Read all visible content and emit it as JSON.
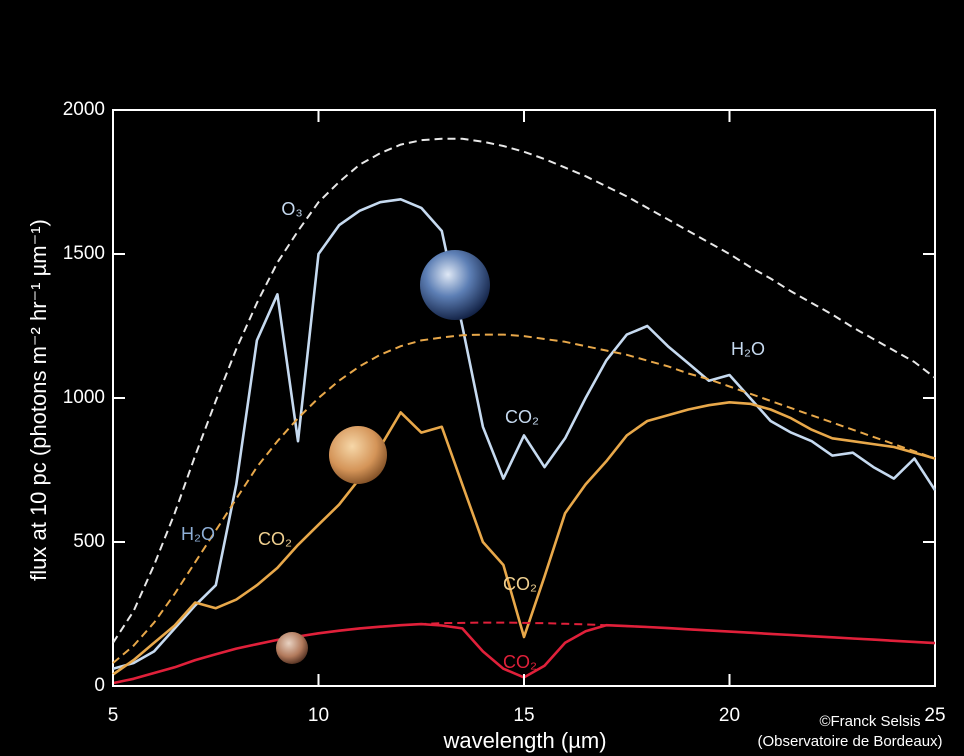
{
  "chart_data": {
    "type": "line",
    "xlabel": "wavelength (µm)",
    "ylabel": "flux at 10 pc (photons m⁻² hr⁻¹ µm⁻¹)",
    "x": [
      5,
      5.5,
      6,
      6.5,
      7,
      7.5,
      8,
      8.5,
      9,
      9.5,
      10,
      10.5,
      11,
      11.5,
      12,
      12.5,
      13,
      13.5,
      14,
      14.5,
      15,
      15.5,
      16,
      16.5,
      17,
      17.5,
      18,
      18.5,
      19,
      19.5,
      20,
      20.5,
      21,
      21.5,
      22,
      22.5,
      23,
      23.5,
      24,
      24.5,
      25
    ],
    "xlim": [
      5,
      25
    ],
    "xticks": [
      5,
      10,
      15,
      20,
      25
    ],
    "ylim": [
      0,
      2000
    ],
    "yticks": [
      0,
      500,
      1000,
      1500,
      2000
    ],
    "series": [
      {
        "color": "#e8e8e8",
        "style": "dashed",
        "values": [
          150,
          260,
          420,
          600,
          800,
          990,
          1170,
          1330,
          1470,
          1580,
          1680,
          1750,
          1810,
          1850,
          1880,
          1895,
          1900,
          1900,
          1890,
          1875,
          1855,
          1830,
          1800,
          1770,
          1735,
          1700,
          1660,
          1620,
          1580,
          1540,
          1500,
          1455,
          1415,
          1370,
          1330,
          1290,
          1245,
          1205,
          1165,
          1125,
          1070
        ]
      },
      {
        "color": "#c6daf0",
        "style": "solid",
        "values": [
          60,
          80,
          120,
          200,
          280,
          350,
          700,
          1200,
          1360,
          850,
          1500,
          1600,
          1650,
          1680,
          1690,
          1660,
          1580,
          1250,
          900,
          720,
          870,
          760,
          860,
          1000,
          1130,
          1220,
          1250,
          1180,
          1120,
          1060,
          1080,
          1000,
          920,
          880,
          850,
          800,
          810,
          760,
          720,
          790,
          680
        ]
      },
      {
        "color": "#e8a84a",
        "style": "dashed",
        "values": [
          80,
          140,
          220,
          320,
          430,
          540,
          650,
          760,
          850,
          930,
          1000,
          1060,
          1110,
          1150,
          1180,
          1200,
          1210,
          1218,
          1220,
          1220,
          1215,
          1205,
          1195,
          1180,
          1165,
          1150,
          1130,
          1110,
          1085,
          1065,
          1040,
          1015,
          990,
          965,
          940,
          915,
          890,
          865,
          840,
          815,
          790
        ]
      },
      {
        "color": "#e8a84a",
        "style": "solid",
        "values": [
          40,
          90,
          150,
          210,
          290,
          270,
          300,
          350,
          410,
          490,
          560,
          630,
          720,
          830,
          950,
          880,
          900,
          700,
          500,
          420,
          170,
          380,
          600,
          700,
          780,
          870,
          920,
          940,
          960,
          975,
          985,
          980,
          960,
          930,
          890,
          860,
          850,
          840,
          830,
          810,
          790
        ]
      },
      {
        "color": "#e0203a",
        "style": "dashed",
        "values": [
          10,
          25,
          45,
          65,
          90,
          110,
          130,
          145,
          160,
          172,
          183,
          192,
          200,
          206,
          211,
          215,
          218,
          219,
          220,
          220,
          219,
          218,
          216,
          214,
          211,
          208,
          205,
          201,
          197,
          193,
          189,
          185,
          181,
          177,
          173,
          169,
          165,
          161,
          157,
          153,
          149
        ]
      },
      {
        "color": "#e0203a",
        "style": "solid",
        "values": [
          10,
          25,
          45,
          65,
          90,
          110,
          130,
          145,
          160,
          172,
          183,
          192,
          200,
          206,
          211,
          215,
          210,
          200,
          120,
          60,
          30,
          70,
          150,
          190,
          211,
          208,
          205,
          201,
          197,
          193,
          189,
          185,
          181,
          177,
          173,
          169,
          165,
          161,
          157,
          153,
          149
        ]
      }
    ],
    "annotations": [
      "O₃",
      "H₂O",
      "CO₂",
      "H₂O",
      "CO₂",
      "CO₂",
      "CO₂"
    ],
    "credit": [
      "©Franck Selsis",
      "(Observatoire de Bordeaux)"
    ]
  }
}
